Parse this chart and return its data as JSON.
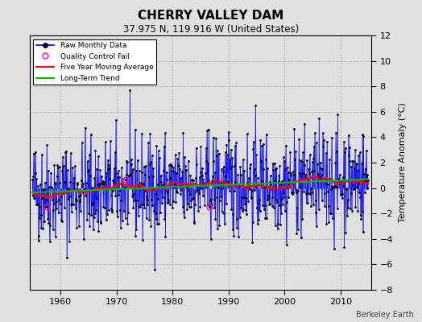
{
  "title": "CHERRY VALLEY DAM",
  "subtitle": "37.975 N, 119.916 W (United States)",
  "ylabel": "Temperature Anomaly (°C)",
  "credit": "Berkeley Earth",
  "start_year": 1955.0,
  "end_year": 2015.0,
  "ylim": [
    -8,
    12
  ],
  "yticks": [
    -8,
    -6,
    -4,
    -2,
    0,
    2,
    4,
    6,
    8,
    10,
    12
  ],
  "xticks": [
    1960,
    1970,
    1980,
    1990,
    2000,
    2010
  ],
  "raw_color": "#0000FF",
  "ma_color": "#FF0000",
  "trend_color": "#00BB00",
  "qc_color": "#FF00FF",
  "bg_color": "#E0E0E0",
  "legend_loc": "upper left",
  "seed": 42,
  "n_months": 720,
  "trend_slope": 0.018,
  "trend_intercept": -0.35,
  "ma_window": 60,
  "noise_std": 2.0,
  "qc_fail_indices": [
    30,
    200,
    380
  ]
}
